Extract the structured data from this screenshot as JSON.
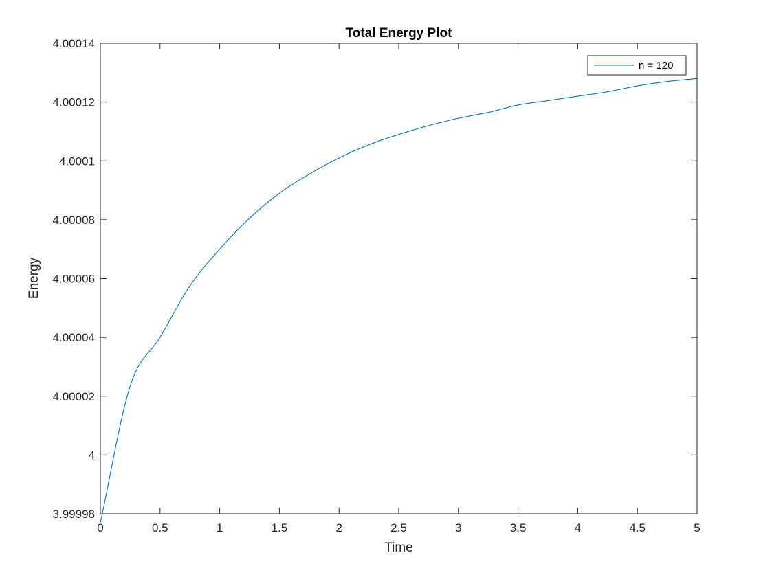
{
  "chart_data": {
    "type": "line",
    "title": "Total Energy Plot",
    "xlabel": "Time",
    "ylabel": "Energy",
    "xlim": [
      0,
      5
    ],
    "ylim": [
      3.99998,
      4.00014
    ],
    "xticks": [
      0,
      0.5,
      1,
      1.5,
      2,
      2.5,
      3,
      3.5,
      4,
      4.5,
      5
    ],
    "xtick_labels": [
      "0",
      "0.5",
      "1",
      "1.5",
      "2",
      "2.5",
      "3",
      "3.5",
      "4",
      "4.5",
      "5"
    ],
    "yticks": [
      3.99998,
      4,
      4.00002,
      4.00004,
      4.00006,
      4.00008,
      4.0001,
      4.00012,
      4.00014
    ],
    "ytick_labels": [
      "3.99998",
      "4",
      "4.00002",
      "4.00004",
      "4.00006",
      "4.00008",
      "4.0001",
      "4.00012",
      "4.00014"
    ],
    "grid": false,
    "legend_position": "top-right",
    "series": [
      {
        "name": "n = 120",
        "color": "#0072BD",
        "x": [
          0,
          0.25,
          0.5,
          0.75,
          1,
          1.25,
          1.5,
          1.75,
          2,
          2.25,
          2.5,
          2.75,
          3,
          3.25,
          3.5,
          3.75,
          4,
          4.25,
          4.5,
          4.75,
          5
        ],
        "y": [
          3.999977,
          4.0000235,
          4.00004,
          4.0000575,
          4.00007,
          4.0000805,
          4.000089,
          4.0000955,
          4.000101,
          4.0001055,
          4.000109,
          4.000112,
          4.0001145,
          4.0001165,
          4.000119,
          4.0001205,
          4.000122,
          4.0001235,
          4.0001255,
          4.000127,
          4.000128
        ]
      }
    ]
  }
}
